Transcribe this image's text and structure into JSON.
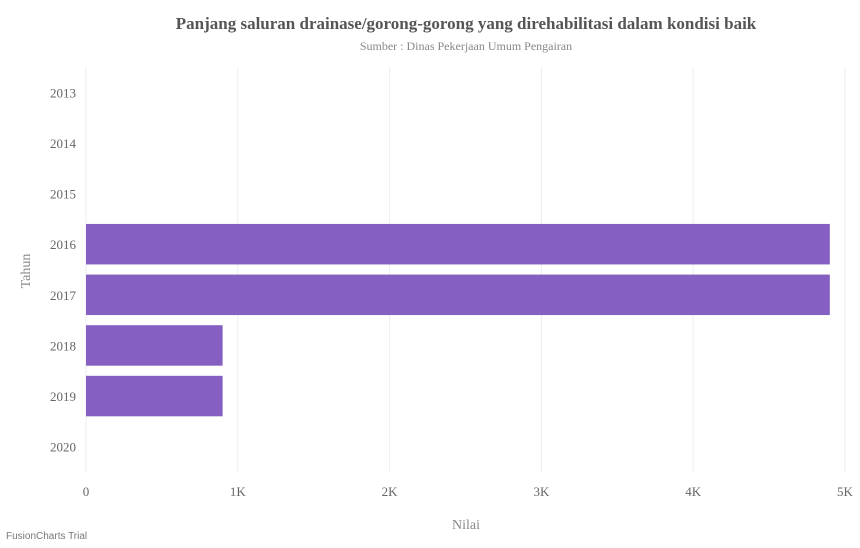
{
  "chart_data": {
    "type": "bar",
    "orientation": "horizontal",
    "title": "Panjang saluran drainase/gorong-gorong yang direhabilitasi dalam kondisi baik",
    "subtitle": "Sumber : Dinas Pekerjaan Umum Pengairan",
    "xlabel": "Nilai",
    "ylabel": "Tahun",
    "categories": [
      "2013",
      "2014",
      "2015",
      "2016",
      "2017",
      "2018",
      "2019",
      "2020"
    ],
    "values": [
      null,
      null,
      null,
      4900,
      4900,
      900,
      900,
      null
    ],
    "xlim": [
      0,
      5000
    ],
    "xticks": [
      0,
      1000,
      2000,
      3000,
      4000,
      5000
    ],
    "xtick_labels": [
      "0",
      "1K",
      "2K",
      "3K",
      "4K",
      "5K"
    ],
    "bar_color": "#8560c2",
    "grid": "vertical"
  },
  "watermark": "FusionCharts Trial"
}
